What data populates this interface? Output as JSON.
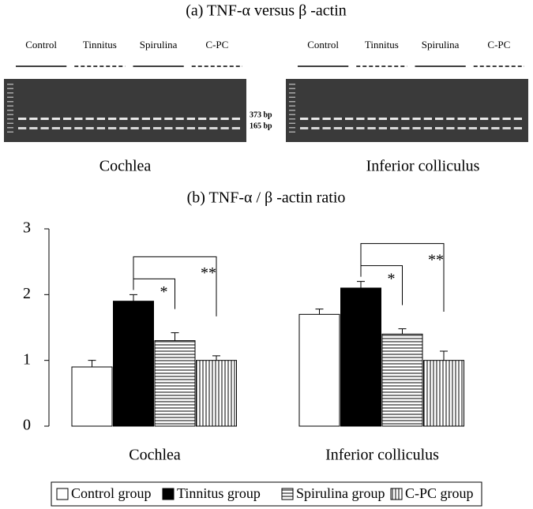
{
  "gel": {
    "title": "(a) TNF-α  versus β -actin",
    "panels": [
      {
        "lanes": [
          "Control",
          "Tinnitus",
          "Spirulina",
          "C-PC"
        ],
        "label": "Cochlea",
        "bands": [
          "373 bp",
          "165 bp"
        ]
      },
      {
        "lanes": [
          "Control",
          "Tinnitus",
          "Spirulina",
          "C-PC"
        ],
        "label": "Inferior colliculus"
      }
    ]
  },
  "chart_data": {
    "type": "bar",
    "title": "(b) TNF-α  / β -actin ratio",
    "categories": [
      "Cochlea",
      "Inferior colliculus"
    ],
    "series": [
      {
        "name": "Control group",
        "fill": "white",
        "values": [
          0.9,
          1.7
        ],
        "errors": [
          0.1,
          0.08
        ]
      },
      {
        "name": "Tinnitus group",
        "fill": "black",
        "values": [
          1.9,
          2.1
        ],
        "errors": [
          0.1,
          0.1
        ]
      },
      {
        "name": "Spirulina group",
        "fill": "horizontal-stripes",
        "values": [
          1.3,
          1.4
        ],
        "errors": [
          0.12,
          0.08
        ]
      },
      {
        "name": "C-PC group",
        "fill": "vertical-stripes",
        "values": [
          1.0,
          1.0
        ],
        "errors": [
          0.07,
          0.14
        ]
      }
    ],
    "significance": [
      [
        "*",
        "**"
      ],
      [
        "*",
        "**"
      ]
    ],
    "ylim": [
      0,
      3
    ],
    "yticks": [
      0,
      1,
      2,
      3
    ],
    "grid": false,
    "legend": "bottom"
  }
}
